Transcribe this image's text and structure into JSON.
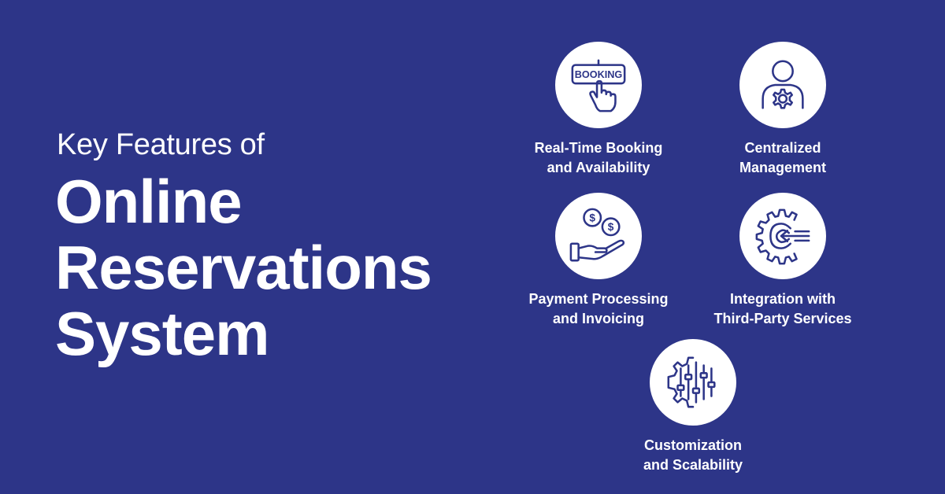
{
  "heading": {
    "subtitle": "Key Features of",
    "title_lines": [
      "Online",
      "Reservations",
      "System"
    ]
  },
  "features": [
    {
      "label": "Real-Time Booking\nand Availability",
      "icon": "booking-hand-icon",
      "icon_text": "BOOKING"
    },
    {
      "label": "Centralized\nManagement",
      "icon": "user-gear-icon"
    },
    {
      "label": "Payment Processing\nand Invoicing",
      "icon": "hand-coins-icon",
      "icon_text": "$"
    },
    {
      "label": "Integration with\nThird-Party Services",
      "icon": "gear-arrow-icon"
    },
    {
      "label": "Customization\nand Scalability",
      "icon": "gear-sliders-icon"
    }
  ],
  "colors": {
    "background": "#2d3588",
    "icon_stroke": "#2d3588",
    "text": "#ffffff",
    "circle": "#ffffff"
  }
}
